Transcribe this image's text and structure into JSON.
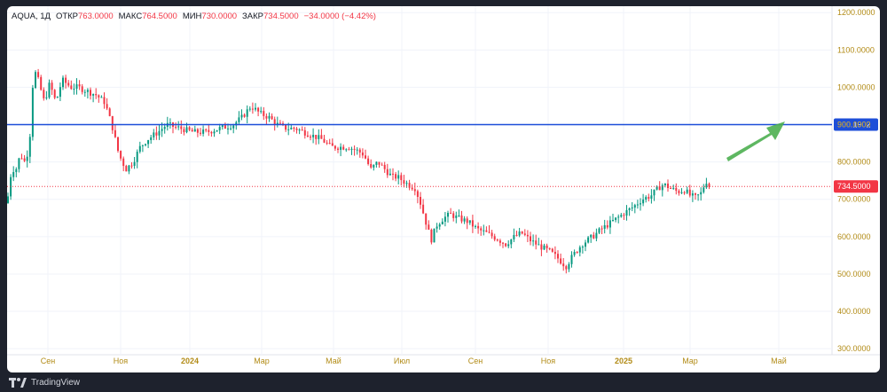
{
  "legend": {
    "symbol": "AQUA",
    "timeframe": "1Д",
    "open_label": "ОТКР",
    "open": "763.0000",
    "high_label": "МАКС",
    "high": "764.5000",
    "low_label": "МИН",
    "low": "730.0000",
    "close_label": "ЗАКР",
    "close": "734.5000",
    "change": "−34.0000 (−4.42%)"
  },
  "brand": {
    "name": "TradingView",
    "icon": "tradingview-logo-icon"
  },
  "colors": {
    "up": "#089981",
    "down": "#f23645",
    "level_line": "#1d4ed8",
    "arrow": "#4caf50",
    "axis_text": "#b28b16"
  },
  "chart_data": {
    "type": "candlestick",
    "ylim": [
      260,
      1210
    ],
    "y_ticks": [
      "1200.0000",
      "1100.0000",
      "1000.0000",
      "900.0000",
      "800.0000",
      "700.0000",
      "600.0000",
      "500.0000",
      "400.0000",
      "300.0000"
    ],
    "x_ticks": [
      {
        "label": "Сен",
        "bold": false
      },
      {
        "label": "Ноя",
        "bold": false
      },
      {
        "label": "2024",
        "bold": true
      },
      {
        "label": "Мар",
        "bold": false
      },
      {
        "label": "Май",
        "bold": false
      },
      {
        "label": "Июл",
        "bold": false
      },
      {
        "label": "Сен",
        "bold": false
      },
      {
        "label": "Ноя",
        "bold": false
      },
      {
        "label": "2025",
        "bold": true
      },
      {
        "label": "Мар",
        "bold": false
      },
      {
        "label": "Май",
        "bold": false
      }
    ],
    "horizontal_level": {
      "value": 900.1902,
      "label": "900.1902"
    },
    "last_price": {
      "value": 734.5,
      "label": "734.5000"
    },
    "price_path": [
      [
        0,
        690
      ],
      [
        5,
        780
      ],
      [
        10,
        780
      ],
      [
        15,
        820
      ],
      [
        20,
        800
      ],
      [
        25,
        840
      ],
      [
        30,
        1050
      ],
      [
        35,
        1020
      ],
      [
        42,
        960
      ],
      [
        48,
        1010
      ],
      [
        55,
        960
      ],
      [
        62,
        1020
      ],
      [
        72,
        1000
      ],
      [
        80,
        1000
      ],
      [
        90,
        990
      ],
      [
        100,
        980
      ],
      [
        110,
        960
      ],
      [
        118,
        900
      ],
      [
        126,
        820
      ],
      [
        134,
        780
      ],
      [
        142,
        800
      ],
      [
        150,
        840
      ],
      [
        158,
        860
      ],
      [
        170,
        880
      ],
      [
        180,
        900
      ],
      [
        195,
        890
      ],
      [
        210,
        880
      ],
      [
        225,
        880
      ],
      [
        240,
        890
      ],
      [
        255,
        900
      ],
      [
        265,
        920
      ],
      [
        275,
        950
      ],
      [
        285,
        930
      ],
      [
        295,
        920
      ],
      [
        305,
        900
      ],
      [
        315,
        890
      ],
      [
        325,
        890
      ],
      [
        335,
        880
      ],
      [
        345,
        870
      ],
      [
        355,
        860
      ],
      [
        365,
        840
      ],
      [
        375,
        840
      ],
      [
        385,
        840
      ],
      [
        395,
        830
      ],
      [
        402,
        820
      ],
      [
        410,
        780
      ],
      [
        418,
        800
      ],
      [
        426,
        780
      ],
      [
        434,
        760
      ],
      [
        440,
        760
      ],
      [
        446,
        750
      ],
      [
        452,
        740
      ],
      [
        460,
        730
      ],
      [
        466,
        690
      ],
      [
        472,
        640
      ],
      [
        478,
        590
      ],
      [
        484,
        630
      ],
      [
        492,
        650
      ],
      [
        500,
        660
      ],
      [
        508,
        650
      ],
      [
        520,
        640
      ],
      [
        530,
        620
      ],
      [
        540,
        610
      ],
      [
        552,
        595
      ],
      [
        562,
        580
      ],
      [
        572,
        600
      ],
      [
        580,
        610
      ],
      [
        590,
        590
      ],
      [
        600,
        575
      ],
      [
        612,
        560
      ],
      [
        622,
        540
      ],
      [
        630,
        520
      ],
      [
        638,
        550
      ],
      [
        648,
        580
      ],
      [
        660,
        600
      ],
      [
        670,
        620
      ],
      [
        682,
        640
      ],
      [
        694,
        660
      ],
      [
        706,
        680
      ],
      [
        716,
        700
      ],
      [
        726,
        710
      ],
      [
        734,
        730
      ],
      [
        740,
        740
      ],
      [
        748,
        730
      ],
      [
        756,
        720
      ],
      [
        764,
        725
      ],
      [
        770,
        710
      ],
      [
        776,
        705
      ],
      [
        782,
        715
      ],
      [
        788,
        750
      ],
      [
        792,
        734
      ]
    ]
  }
}
